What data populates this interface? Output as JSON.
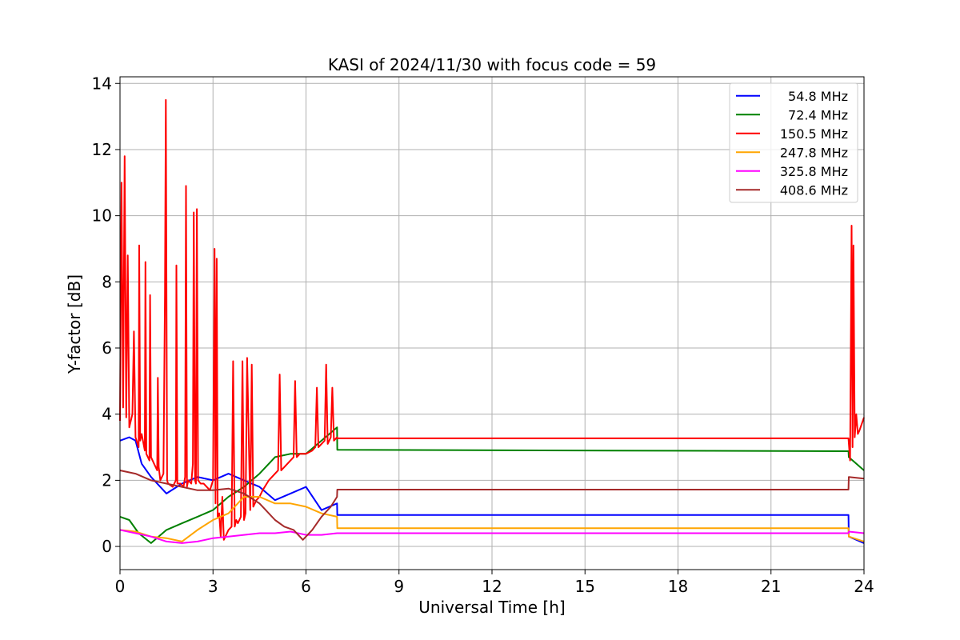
{
  "chart_data": {
    "type": "line",
    "title": "KASI of 2024/11/30 with focus code = 59",
    "xlabel": "Universal Time [h]",
    "ylabel": "Y-factor [dB]",
    "xlim": [
      0,
      24
    ],
    "ylim": [
      -0.7,
      14.2
    ],
    "xticks": [
      0,
      3,
      6,
      9,
      12,
      15,
      18,
      21,
      24
    ],
    "yticks": [
      0,
      2,
      4,
      6,
      8,
      10,
      12,
      14
    ],
    "grid": true,
    "legend_position": "top-right",
    "series": [
      {
        "name": "54.8 MHz",
        "color": "#0000ff",
        "x": [
          0,
          0.3,
          0.5,
          0.7,
          1.0,
          1.5,
          2.0,
          2.5,
          3.0,
          3.5,
          4.0,
          4.5,
          5.0,
          5.5,
          6.0,
          6.5,
          7.0,
          7.01,
          23.5,
          23.51,
          24.0
        ],
        "y": [
          3.2,
          3.3,
          3.2,
          2.5,
          2.1,
          1.6,
          1.9,
          2.1,
          2.0,
          2.2,
          2.0,
          1.8,
          1.4,
          1.6,
          1.8,
          1.1,
          1.3,
          0.95,
          0.95,
          0.3,
          0.1
        ]
      },
      {
        "name": "72.4 MHz",
        "color": "#008000",
        "x": [
          0,
          0.3,
          0.6,
          1.0,
          1.5,
          2.0,
          2.5,
          3.0,
          3.5,
          4.0,
          4.5,
          5.0,
          5.5,
          6.0,
          6.5,
          7.0,
          7.01,
          23.5,
          23.51,
          24.0
        ],
        "y": [
          0.9,
          0.8,
          0.4,
          0.1,
          0.5,
          0.7,
          0.9,
          1.1,
          1.5,
          1.8,
          2.2,
          2.7,
          2.8,
          2.8,
          3.2,
          3.6,
          2.92,
          2.88,
          2.7,
          2.3
        ]
      },
      {
        "name": "150.5 MHz",
        "color": "#ff0000",
        "x": [
          0,
          0.05,
          0.1,
          0.15,
          0.2,
          0.25,
          0.3,
          0.4,
          0.45,
          0.5,
          0.6,
          0.62,
          0.65,
          0.7,
          0.8,
          0.82,
          0.85,
          0.95,
          0.97,
          1.0,
          1.1,
          1.2,
          1.22,
          1.25,
          1.3,
          1.4,
          1.45,
          1.48,
          1.52,
          1.55,
          1.7,
          1.8,
          1.82,
          1.85,
          1.95,
          2.05,
          2.1,
          2.13,
          2.16,
          2.2,
          2.3,
          2.35,
          2.38,
          2.42,
          2.45,
          2.48,
          2.52,
          2.6,
          2.7,
          2.9,
          3.0,
          3.05,
          3.08,
          3.12,
          3.15,
          3.2,
          3.25,
          3.3,
          3.35,
          3.5,
          3.6,
          3.65,
          3.7,
          3.75,
          3.8,
          3.9,
          3.95,
          4.0,
          4.05,
          4.1,
          4.2,
          4.25,
          4.3,
          4.4,
          4.5,
          4.6,
          4.8,
          5.0,
          5.1,
          5.15,
          5.2,
          5.4,
          5.5,
          5.6,
          5.65,
          5.7,
          5.8,
          6.0,
          6.2,
          6.3,
          6.35,
          6.4,
          6.5,
          6.6,
          6.65,
          6.7,
          6.8,
          6.85,
          6.9,
          7.0,
          7.01,
          23.5,
          23.55,
          23.6,
          23.63,
          23.66,
          23.7,
          23.75,
          23.8,
          23.85,
          24.0
        ],
        "y": [
          3.8,
          11.0,
          4.2,
          11.8,
          3.9,
          8.8,
          3.6,
          4.0,
          6.5,
          3.3,
          3.0,
          9.1,
          3.2,
          3.4,
          2.9,
          8.6,
          2.8,
          2.6,
          7.6,
          2.7,
          2.5,
          2.3,
          5.1,
          2.4,
          2.0,
          2.2,
          7.6,
          13.5,
          2.0,
          1.9,
          1.8,
          2.0,
          8.5,
          1.9,
          1.9,
          1.8,
          2.1,
          10.9,
          1.8,
          2.0,
          1.9,
          2.5,
          10.1,
          2.0,
          1.9,
          10.2,
          2.0,
          1.9,
          1.9,
          1.7,
          2.0,
          9.0,
          1.3,
          8.7,
          0.9,
          1.0,
          0.3,
          1.5,
          0.2,
          0.5,
          0.6,
          5.6,
          0.6,
          0.8,
          0.7,
          0.9,
          5.6,
          0.8,
          1.0,
          5.7,
          1.1,
          5.5,
          1.2,
          1.4,
          1.5,
          1.7,
          2.0,
          2.2,
          2.3,
          5.2,
          2.3,
          2.5,
          2.6,
          2.7,
          5.0,
          2.7,
          2.8,
          2.8,
          2.9,
          3.0,
          4.8,
          3.0,
          3.1,
          3.2,
          5.5,
          3.1,
          3.3,
          4.8,
          3.2,
          3.3,
          3.27,
          3.27,
          2.6,
          9.7,
          3.0,
          9.1,
          3.3,
          4.0,
          3.4,
          3.5,
          3.9
        ]
      },
      {
        "name": "247.8 MHz",
        "color": "#ffa500",
        "x": [
          0,
          0.5,
          1.0,
          1.5,
          2.0,
          2.5,
          3.0,
          3.5,
          4.0,
          4.5,
          5.0,
          5.5,
          6.0,
          6.5,
          7.0,
          7.01,
          23.5,
          23.51,
          24.0
        ],
        "y": [
          0.5,
          0.45,
          0.3,
          0.25,
          0.15,
          0.5,
          0.8,
          1.0,
          1.5,
          1.5,
          1.3,
          1.3,
          1.2,
          1.0,
          0.9,
          0.55,
          0.55,
          0.3,
          0.15
        ]
      },
      {
        "name": "325.8 MHz",
        "color": "#ff00ff",
        "x": [
          0,
          0.5,
          1.0,
          1.5,
          2.0,
          2.5,
          3.0,
          3.5,
          4.0,
          4.5,
          5.0,
          5.5,
          6.0,
          6.5,
          7.0,
          7.01,
          23.5,
          23.51,
          24.0
        ],
        "y": [
          0.5,
          0.4,
          0.3,
          0.15,
          0.1,
          0.15,
          0.25,
          0.3,
          0.35,
          0.4,
          0.4,
          0.45,
          0.35,
          0.35,
          0.4,
          0.4,
          0.4,
          0.45,
          0.4
        ]
      },
      {
        "name": "408.6 MHz",
        "color": "#a52a2a",
        "x": [
          0,
          0.5,
          1.0,
          1.5,
          2.0,
          2.5,
          3.0,
          3.5,
          4.0,
          4.5,
          5.0,
          5.3,
          5.6,
          5.9,
          6.0,
          6.2,
          6.5,
          6.8,
          7.0,
          7.01,
          23.5,
          23.51,
          24.0
        ],
        "y": [
          2.3,
          2.2,
          2.0,
          1.9,
          1.8,
          1.7,
          1.7,
          1.75,
          1.6,
          1.3,
          0.8,
          0.6,
          0.5,
          0.2,
          0.3,
          0.5,
          0.9,
          1.2,
          1.5,
          1.72,
          1.72,
          2.1,
          2.05
        ]
      }
    ]
  }
}
